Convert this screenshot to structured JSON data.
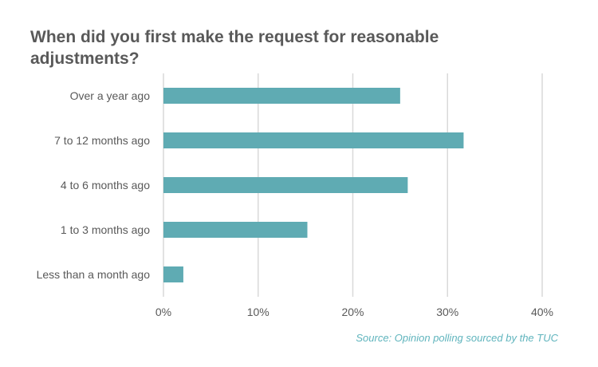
{
  "chart_data": {
    "type": "bar",
    "orientation": "horizontal",
    "title_lines": [
      "When did you first make the request for reasonable",
      "adjustments?"
    ],
    "categories": [
      "Over a year ago",
      "7 to 12 months ago",
      "4 to 6 months ago",
      "1 to 3 months ago",
      "Less than a month ago"
    ],
    "values": [
      25,
      31.7,
      25.8,
      15.2,
      2.1
    ],
    "xlim": [
      0,
      40
    ],
    "x_ticks": [
      0,
      10,
      20,
      30,
      40
    ],
    "x_tick_labels": [
      "0%",
      "10%",
      "20%",
      "30%",
      "40%"
    ],
    "grid": "vertical",
    "bar_color": "#5fabb3",
    "source": "Source: Opinion polling sourced by the TUC"
  }
}
